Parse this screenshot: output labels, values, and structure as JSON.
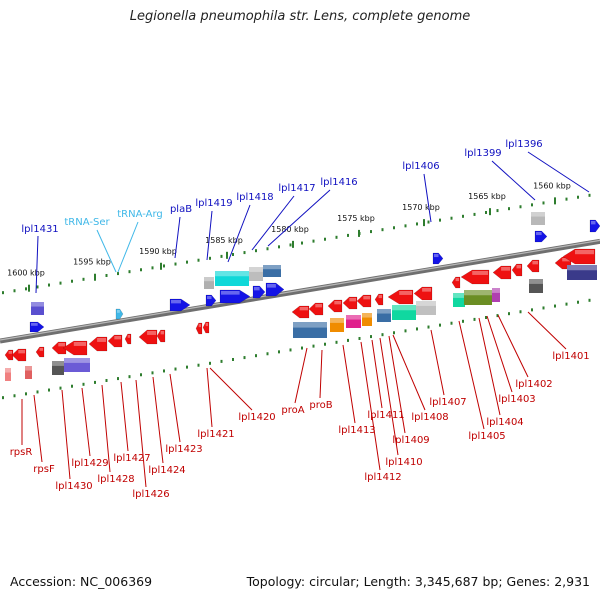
{
  "title": "Legionella pneumophila str. Lens, complete genome",
  "accession": "Accession: NC_006369",
  "topology": "Topology: circular; Length: 3,345,687 bp; Genes: 2,931",
  "colors": {
    "forward_label": "#1010c0",
    "reverse_label": "#c00000",
    "trna_label": "#40b8e8",
    "backbone": "#808080",
    "tick": "#2e7d2e",
    "forward_gene": "#1414e6",
    "reverse_gene": "#ee1111"
  },
  "scale_labels": [
    "1600 kbp",
    "1595 kbp",
    "1590 kbp",
    "1585 kbp",
    "1580 kbp",
    "1575 kbp",
    "1570 kbp",
    "1565 kbp",
    "1560 kbp"
  ],
  "top_labels": [
    "lpl1431",
    "tRNA-Ser",
    "tRNA-Arg",
    "plaB",
    "lpl1419",
    "lpl1418",
    "lpl1417",
    "lpl1416",
    "lpl1406",
    "lpl1399",
    "lpl1396"
  ],
  "bottom_labels": [
    "rpsR",
    "rpsF",
    "lpl1430",
    "lpl1429",
    "lpl1428",
    "lpl1427",
    "lpl1426",
    "lpl1424",
    "lpl1423",
    "lpl1421",
    "lpl1420",
    "proA",
    "proB",
    "lpl1413",
    "lpl1412",
    "lpl1411",
    "lpl1410",
    "lpl1409",
    "lpl1408",
    "lpl1407",
    "lpl1405",
    "lpl1404",
    "lpl1403",
    "lpl1402",
    "lpl1401"
  ]
}
